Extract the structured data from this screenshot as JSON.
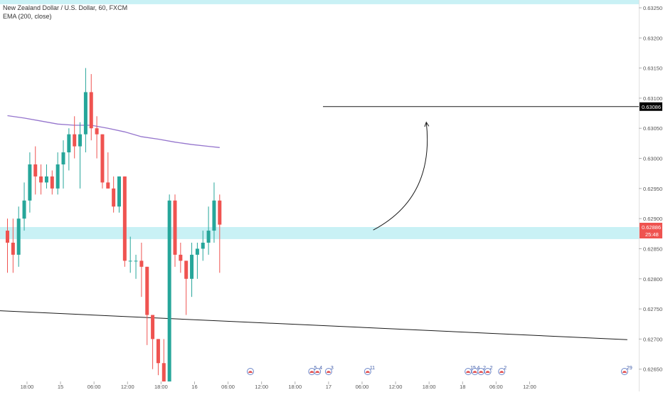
{
  "legend": {
    "symbol_line": "New Zealand Dollar / U.S. Dollar, 60, FXCM",
    "indicator_line": "EMA (200, close)"
  },
  "colors": {
    "up": "#26a69a",
    "down": "#ef5350",
    "ema": "#9575cd",
    "zone": "#c9f1f5",
    "axis_text": "#555555",
    "price_label_bg": "#000000",
    "current_label_bg": "#ef5350"
  },
  "chart_data": {
    "type": "candlestick",
    "symbol": "New Zealand Dollar / U.S. Dollar",
    "interval": "60",
    "source": "FXCM",
    "y_ticks": [
      0.6325,
      0.632,
      0.6315,
      0.631,
      0.6305,
      0.63,
      0.6295,
      0.629,
      0.6285,
      0.628,
      0.6275,
      0.627,
      0.6265
    ],
    "y_tick_labels": [
      "0.63250",
      "0.63200",
      "0.63150",
      "0.63100",
      "0.63050",
      "0.63000",
      "0.62950",
      "0.62900",
      "0.62850",
      "0.62800",
      "0.62750",
      "0.62700",
      "0.62650"
    ],
    "ylim": [
      0.62613,
      0.63263
    ],
    "x_labels": [
      {
        "label": "18:00",
        "bar": 3.5
      },
      {
        "label": "15",
        "bar": 9.5
      },
      {
        "label": "06:00",
        "bar": 15.5
      },
      {
        "label": "12:00",
        "bar": 21.5
      },
      {
        "label": "18:00",
        "bar": 27.5
      },
      {
        "label": "16",
        "bar": 33.5
      },
      {
        "label": "06:00",
        "bar": 39.5
      },
      {
        "label": "12:00",
        "bar": 45.5
      },
      {
        "label": "18:00",
        "bar": 51.5
      },
      {
        "label": "17",
        "bar": 57.5
      },
      {
        "label": "06:00",
        "bar": 63.5
      },
      {
        "label": "12:00",
        "bar": 69.5
      },
      {
        "label": "18:00",
        "bar": 75.5
      },
      {
        "label": "18",
        "bar": 81.5
      },
      {
        "label": "06:00",
        "bar": 87.5
      },
      {
        "label": "12:00",
        "bar": 93.5
      }
    ],
    "candles": [
      {
        "o": 0.6288,
        "h": 0.629,
        "l": 0.6281,
        "c": 0.6286
      },
      {
        "o": 0.6286,
        "h": 0.629,
        "l": 0.6281,
        "c": 0.6284
      },
      {
        "o": 0.6284,
        "h": 0.6292,
        "l": 0.6282,
        "c": 0.629
      },
      {
        "o": 0.629,
        "h": 0.6296,
        "l": 0.6288,
        "c": 0.6293
      },
      {
        "o": 0.6293,
        "h": 0.6301,
        "l": 0.6291,
        "c": 0.6299
      },
      {
        "o": 0.6299,
        "h": 0.6302,
        "l": 0.6294,
        "c": 0.6297
      },
      {
        "o": 0.6297,
        "h": 0.6299,
        "l": 0.6294,
        "c": 0.6296
      },
      {
        "o": 0.6296,
        "h": 0.6299,
        "l": 0.6295,
        "c": 0.6297
      },
      {
        "o": 0.6297,
        "h": 0.6298,
        "l": 0.6294,
        "c": 0.6295
      },
      {
        "o": 0.6295,
        "h": 0.6301,
        "l": 0.6294,
        "c": 0.6299
      },
      {
        "o": 0.6299,
        "h": 0.6303,
        "l": 0.6295,
        "c": 0.6301
      },
      {
        "o": 0.6301,
        "h": 0.6305,
        "l": 0.6298,
        "c": 0.6304
      },
      {
        "o": 0.6304,
        "h": 0.6307,
        "l": 0.63,
        "c": 0.6302
      },
      {
        "o": 0.6302,
        "h": 0.6306,
        "l": 0.6295,
        "c": 0.6304
      },
      {
        "o": 0.6304,
        "h": 0.6315,
        "l": 0.6301,
        "c": 0.6311
      },
      {
        "o": 0.6311,
        "h": 0.6314,
        "l": 0.6303,
        "c": 0.6305
      },
      {
        "o": 0.6305,
        "h": 0.6307,
        "l": 0.63,
        "c": 0.6304
      },
      {
        "o": 0.6304,
        "h": 0.6304,
        "l": 0.6295,
        "c": 0.6296
      },
      {
        "o": 0.6296,
        "h": 0.6301,
        "l": 0.6295,
        "c": 0.6295
      },
      {
        "o": 0.6295,
        "h": 0.6297,
        "l": 0.6291,
        "c": 0.6292
      },
      {
        "o": 0.6292,
        "h": 0.6297,
        "l": 0.6291,
        "c": 0.6297
      },
      {
        "o": 0.6297,
        "h": 0.6297,
        "l": 0.6282,
        "c": 0.6283
      },
      {
        "o": 0.6283,
        "h": 0.6287,
        "l": 0.6281,
        "c": 0.6283
      },
      {
        "o": 0.6283,
        "h": 0.6284,
        "l": 0.628,
        "c": 0.6283
      },
      {
        "o": 0.6283,
        "h": 0.6286,
        "l": 0.6277,
        "c": 0.6282
      },
      {
        "o": 0.6282,
        "h": 0.6282,
        "l": 0.6269,
        "c": 0.6274
      },
      {
        "o": 0.6274,
        "h": 0.6274,
        "l": 0.6265,
        "c": 0.627
      },
      {
        "o": 0.627,
        "h": 0.627,
        "l": 0.6264,
        "c": 0.6266
      },
      {
        "o": 0.6266,
        "h": 0.627,
        "l": 0.626,
        "c": 0.6262
      },
      {
        "o": 0.6262,
        "h": 0.6294,
        "l": 0.6262,
        "c": 0.6293
      },
      {
        "o": 0.6293,
        "h": 0.6294,
        "l": 0.6282,
        "c": 0.6284
      },
      {
        "o": 0.6284,
        "h": 0.6286,
        "l": 0.6281,
        "c": 0.6283
      },
      {
        "o": 0.6283,
        "h": 0.6283,
        "l": 0.6274,
        "c": 0.628
      },
      {
        "o": 0.628,
        "h": 0.6286,
        "l": 0.6277,
        "c": 0.6284
      },
      {
        "o": 0.6284,
        "h": 0.6286,
        "l": 0.628,
        "c": 0.6285
      },
      {
        "o": 0.6285,
        "h": 0.6288,
        "l": 0.6283,
        "c": 0.6286
      },
      {
        "o": 0.6286,
        "h": 0.6292,
        "l": 0.6284,
        "c": 0.6288
      },
      {
        "o": 0.6288,
        "h": 0.6296,
        "l": 0.6286,
        "c": 0.6293
      },
      {
        "o": 0.6293,
        "h": 0.6294,
        "l": 0.6281,
        "c": 0.6289
      }
    ],
    "ema": {
      "name": "EMA (200, close)",
      "points": [
        [
          0,
          0.63071
        ],
        [
          3,
          0.63067
        ],
        [
          6,
          0.63062
        ],
        [
          9,
          0.63057
        ],
        [
          12,
          0.63055
        ],
        [
          15,
          0.63055
        ],
        [
          18,
          0.6305
        ],
        [
          21,
          0.63044
        ],
        [
          24,
          0.63036
        ],
        [
          27,
          0.63032
        ],
        [
          30,
          0.63027
        ],
        [
          33,
          0.63023
        ],
        [
          36,
          0.6302
        ],
        [
          38,
          0.63018
        ]
      ]
    },
    "horizontal_ray": {
      "price": 0.63086,
      "from_bar": 56.5
    },
    "zones": [
      {
        "top": 0.63263,
        "bottom": 0.63256
      },
      {
        "top": 0.62886,
        "bottom": 0.62866
      }
    ],
    "trend_line": {
      "from": [
        0,
        0.62747
      ],
      "to": [
        111,
        0.62699
      ]
    },
    "arrow": {
      "from": [
        65.5,
        0.62881
      ],
      "control": [
        76.5,
        0.62935
      ],
      "to": [
        75,
        0.6306
      ]
    },
    "price_labels": {
      "horizontal_line": "0.63086",
      "current_price": "0.62886",
      "countdown": "25:48"
    },
    "current_price": 0.62886,
    "event_markers": [
      {
        "bar": 43.5,
        "label": ""
      },
      {
        "bar": 54.5,
        "label": "5"
      },
      {
        "bar": 55.5,
        "label": "4"
      },
      {
        "bar": 57.5,
        "label": "3"
      },
      {
        "bar": 64.5,
        "label": "11"
      },
      {
        "bar": 82.5,
        "label": "15"
      },
      {
        "bar": 83.7,
        "label": "4"
      },
      {
        "bar": 84.8,
        "label": "2"
      },
      {
        "bar": 86.0,
        "label": "2"
      },
      {
        "bar": 88.5,
        "label": "2"
      },
      {
        "bar": 110.5,
        "label": "29"
      }
    ]
  }
}
